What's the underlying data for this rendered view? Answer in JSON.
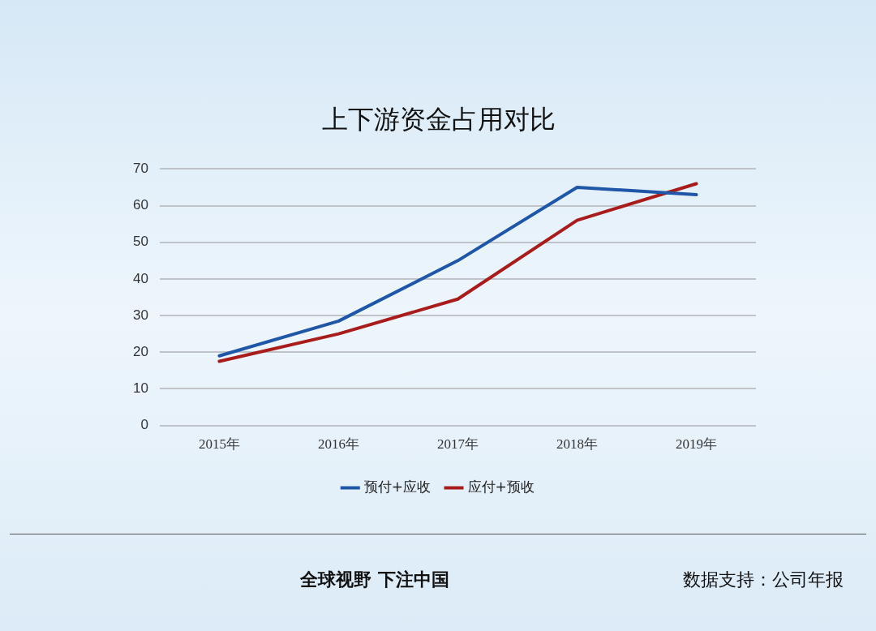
{
  "chart_data": {
    "type": "line",
    "title": "上下游资金占用对比",
    "categories": [
      "2015年",
      "2016年",
      "2017年",
      "2018年",
      "2019年"
    ],
    "series": [
      {
        "name": "预付+应收",
        "color": "#1f56a8",
        "values": [
          19,
          28.5,
          45,
          65,
          63
        ]
      },
      {
        "name": "应付+预收",
        "color": "#a81c1c",
        "values": [
          17.5,
          25,
          34.5,
          56,
          66
        ]
      }
    ],
    "ylim": [
      0,
      70
    ],
    "yticks": [
      0,
      10,
      20,
      30,
      40,
      50,
      60,
      70
    ],
    "grid": "y",
    "legend": "bottom",
    "marker": "none",
    "line_style": "solid",
    "annotations": [
      "全球视野 下注中国",
      "数据支持：公司年报"
    ]
  }
}
